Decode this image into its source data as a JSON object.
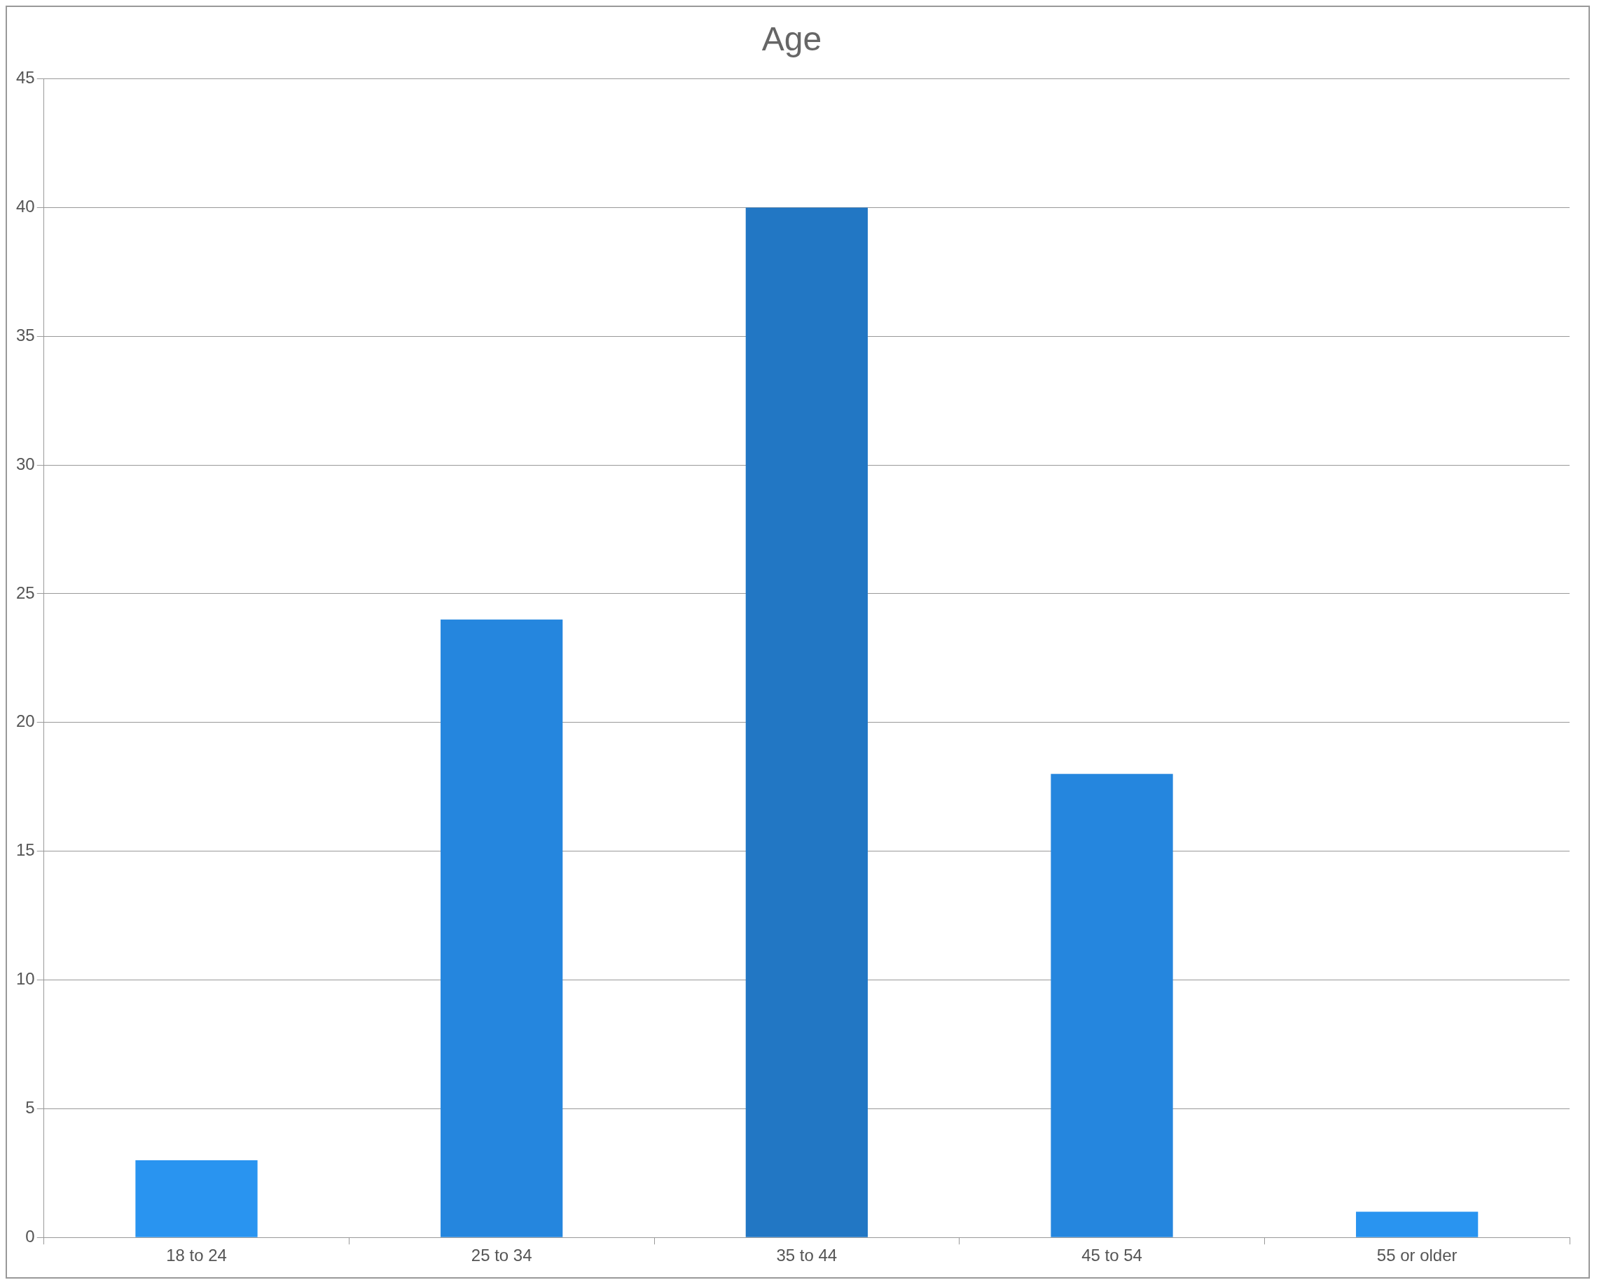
{
  "chart_data": {
    "type": "bar",
    "title": "Age",
    "categories": [
      "18 to 24",
      "25 to 34",
      "35 to 44",
      "45 to 54",
      "55 or older"
    ],
    "values": [
      3,
      24,
      40,
      18,
      1
    ],
    "colors": [
      "#2994f0",
      "#2586de",
      "#2277c4",
      "#2586de",
      "#2994f0"
    ],
    "ylim": [
      0,
      45
    ],
    "yticks": [
      0,
      5,
      10,
      15,
      20,
      25,
      30,
      35,
      40,
      45
    ],
    "grid": "y",
    "legend": false
  }
}
